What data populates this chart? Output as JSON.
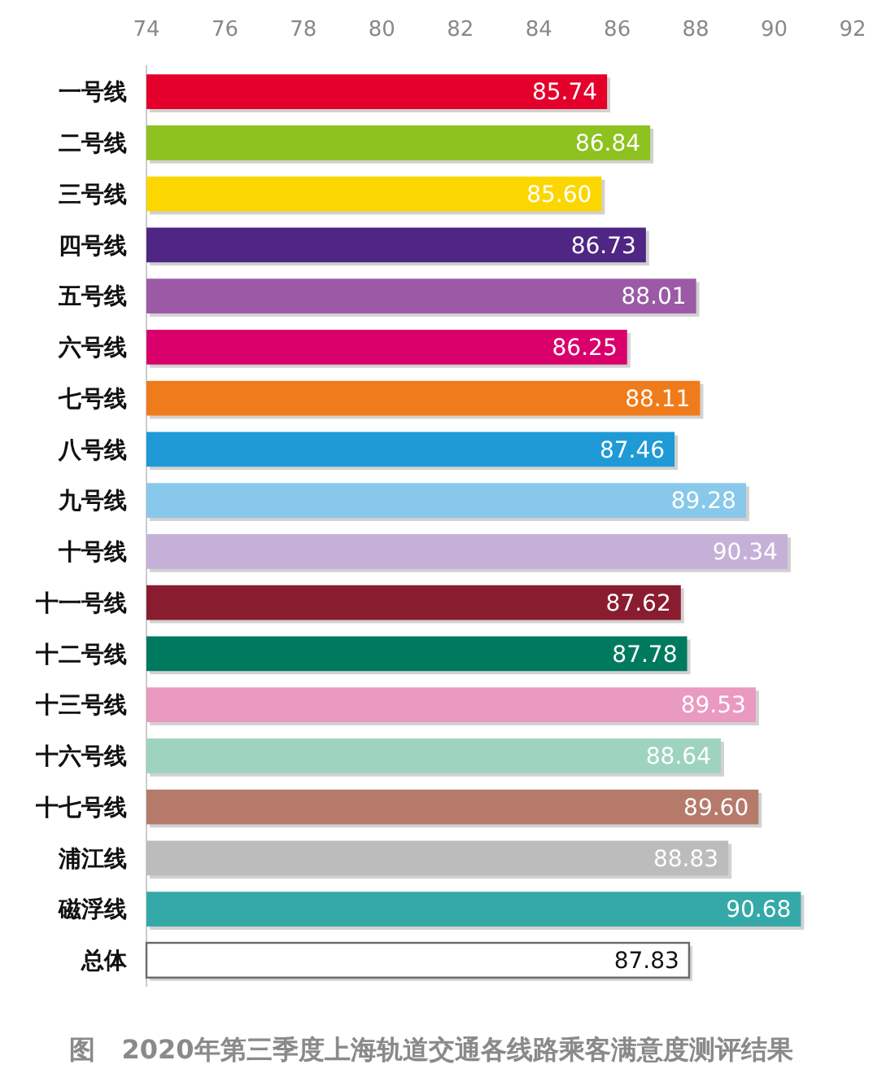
{
  "chart_data": {
    "type": "bar",
    "orientation": "horizontal",
    "title": "图　2020年第三季度上海轨道交通各线路乘客满意度测评结果",
    "categories": [
      "一号线",
      "二号线",
      "三号线",
      "四号线",
      "五号线",
      "六号线",
      "七号线",
      "八号线",
      "九号线",
      "十号线",
      "十一号线",
      "十二号线",
      "十三号线",
      "十六号线",
      "十七号线",
      "浦江线",
      "磁浮线",
      "总体"
    ],
    "values": [
      85.74,
      86.84,
      85.6,
      86.73,
      88.01,
      86.25,
      88.11,
      87.46,
      89.28,
      90.34,
      87.62,
      87.78,
      89.53,
      88.64,
      89.6,
      88.83,
      90.68,
      87.83
    ],
    "colors": [
      "#e4002b",
      "#8dc21f",
      "#fcd600",
      "#4f2683",
      "#9b59a6",
      "#d9006c",
      "#f07b1a",
      "#1f9ad6",
      "#88c8ea",
      "#c5b1d8",
      "#8a1c2f",
      "#007a5e",
      "#ea99c0",
      "#9ed3bf",
      "#b57a6a",
      "#bcbcbc",
      "#35a9a7",
      "#ffffff"
    ],
    "value_labels": [
      "85.74",
      "86.84",
      "85.60",
      "86.73",
      "88.01",
      "86.25",
      "88.11",
      "87.46",
      "89.28",
      "90.34",
      "87.62",
      "87.78",
      "89.53",
      "88.64",
      "89.60",
      "88.83",
      "90.68",
      "87.83"
    ],
    "xlim": [
      74,
      92
    ],
    "xticks": [
      74,
      76,
      78,
      80,
      82,
      84,
      86,
      88,
      90,
      92
    ]
  }
}
